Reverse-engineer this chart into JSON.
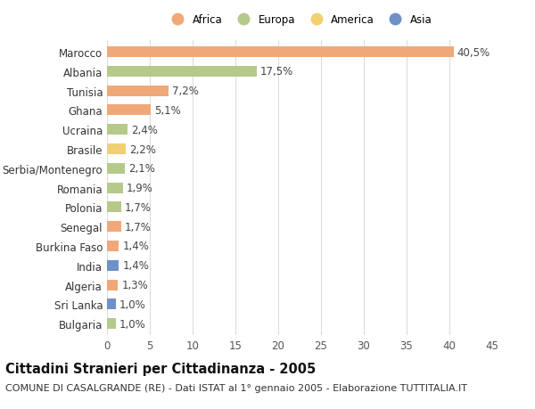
{
  "countries": [
    "Marocco",
    "Albania",
    "Tunisia",
    "Ghana",
    "Ucraina",
    "Brasile",
    "Serbia/Montenegro",
    "Romania",
    "Polonia",
    "Senegal",
    "Burkina Faso",
    "India",
    "Algeria",
    "Sri Lanka",
    "Bulgaria"
  ],
  "values": [
    40.5,
    17.5,
    7.2,
    5.1,
    2.4,
    2.2,
    2.1,
    1.9,
    1.7,
    1.7,
    1.4,
    1.4,
    1.3,
    1.0,
    1.0
  ],
  "labels": [
    "40,5%",
    "17,5%",
    "7,2%",
    "5,1%",
    "2,4%",
    "2,2%",
    "2,1%",
    "1,9%",
    "1,7%",
    "1,7%",
    "1,4%",
    "1,4%",
    "1,3%",
    "1,0%",
    "1,0%"
  ],
  "continents": [
    "Africa",
    "Europa",
    "Africa",
    "Africa",
    "Europa",
    "America",
    "Europa",
    "Europa",
    "Europa",
    "Africa",
    "Africa",
    "Asia",
    "Africa",
    "Asia",
    "Europa"
  ],
  "continent_colors": {
    "Africa": "#F0A878",
    "Europa": "#B5C98A",
    "America": "#F0D070",
    "Asia": "#7090C8"
  },
  "legend_order": [
    "Africa",
    "Europa",
    "America",
    "Asia"
  ],
  "xlim": [
    0,
    45
  ],
  "xticks": [
    0,
    5,
    10,
    15,
    20,
    25,
    30,
    35,
    40,
    45
  ],
  "title": "Cittadini Stranieri per Cittadinanza - 2005",
  "subtitle": "COMUNE DI CASALGRANDE (RE) - Dati ISTAT al 1° gennaio 2005 - Elaborazione TUTTITALIA.IT",
  "bg_color": "#FFFFFF",
  "grid_color": "#DDDDDD",
  "bar_height": 0.55,
  "label_fontsize": 8.5,
  "title_fontsize": 10.5,
  "subtitle_fontsize": 8
}
